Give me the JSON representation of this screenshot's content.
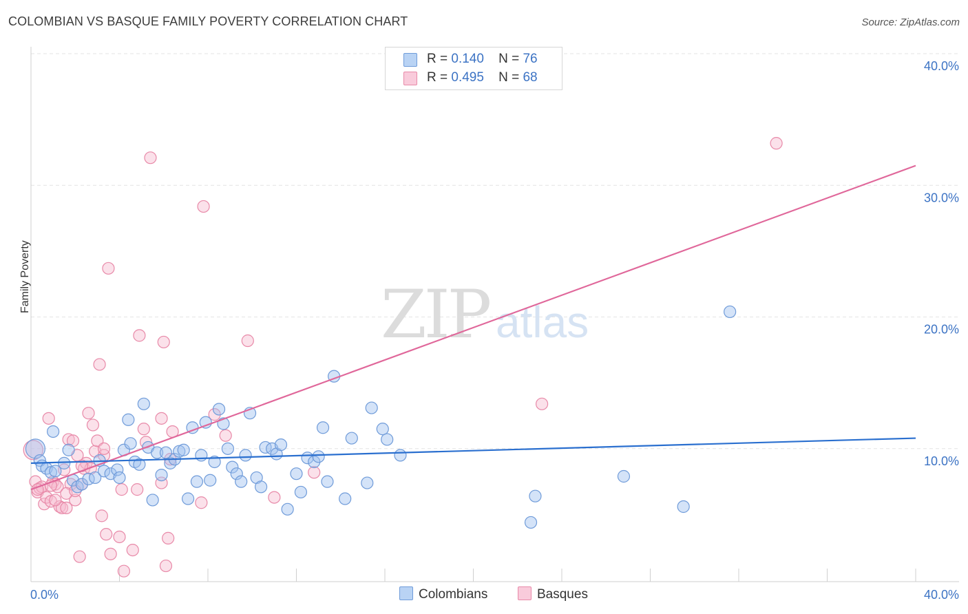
{
  "title": "COLOMBIAN VS BASQUE FAMILY POVERTY CORRELATION CHART",
  "source": "Source: ZipAtlas.com",
  "watermark": {
    "zip": "ZIP",
    "atlas": "atlas"
  },
  "legend": {
    "rows": [
      {
        "r_label": "R =",
        "r_value": "0.140",
        "n_label": "N =",
        "n_value": "76"
      },
      {
        "r_label": "R =",
        "r_value": "0.495",
        "n_label": "N =",
        "n_value": "68"
      }
    ]
  },
  "bottom_legend": {
    "colombians": "Colombians",
    "basques": "Basques"
  },
  "colors": {
    "colombians_fill": "#9fc2f0",
    "colombians_stroke": "#6f9bd9",
    "colombians_line": "#2a6fcf",
    "basques_fill": "#f7bcd0",
    "basques_stroke": "#e889a8",
    "basques_line": "#e0679a",
    "tick_label": "#3c73c4",
    "grid": "#e3e3e3"
  },
  "chart_data": {
    "type": "scatter",
    "title": "COLOMBIAN VS BASQUE FAMILY POVERTY CORRELATION CHART",
    "xlabel": "",
    "ylabel": "Family Poverty",
    "xlim": [
      0,
      40
    ],
    "ylim": [
      0,
      40
    ],
    "x_tick_labels": [
      "0.0%",
      "40.0%"
    ],
    "y_ticks": [
      10,
      20,
      30,
      40
    ],
    "y_tick_labels": [
      "10.0%",
      "20.0%",
      "30.0%",
      "40.0%"
    ],
    "grid": true,
    "legend_placement": "top-center",
    "series": [
      {
        "name": "Colombians",
        "r": 0.14,
        "n": 76,
        "trend": {
          "x": [
            0,
            40
          ],
          "y": [
            9.0,
            10.9
          ]
        },
        "points": [
          [
            0.2,
            10.1
          ],
          [
            0.4,
            9.2
          ],
          [
            0.5,
            8.8
          ],
          [
            0.7,
            8.6
          ],
          [
            0.9,
            8.3
          ],
          [
            1.0,
            11.4
          ],
          [
            1.1,
            8.4
          ],
          [
            1.5,
            9.0
          ],
          [
            1.7,
            10.0
          ],
          [
            1.9,
            7.7
          ],
          [
            2.1,
            7.2
          ],
          [
            2.3,
            7.4
          ],
          [
            2.6,
            7.8
          ],
          [
            2.9,
            7.9
          ],
          [
            3.1,
            9.2
          ],
          [
            3.3,
            8.4
          ],
          [
            3.6,
            8.2
          ],
          [
            3.9,
            8.5
          ],
          [
            4.0,
            7.9
          ],
          [
            4.2,
            10.0
          ],
          [
            4.4,
            12.3
          ],
          [
            4.5,
            10.5
          ],
          [
            4.7,
            9.1
          ],
          [
            4.9,
            8.9
          ],
          [
            5.1,
            13.5
          ],
          [
            5.3,
            10.2
          ],
          [
            5.5,
            6.2
          ],
          [
            5.7,
            9.8
          ],
          [
            5.9,
            8.1
          ],
          [
            6.1,
            9.8
          ],
          [
            6.3,
            9.0
          ],
          [
            6.5,
            9.3
          ],
          [
            6.7,
            9.9
          ],
          [
            6.9,
            10.0
          ],
          [
            7.1,
            6.3
          ],
          [
            7.3,
            11.7
          ],
          [
            7.5,
            7.6
          ],
          [
            7.7,
            9.6
          ],
          [
            7.9,
            12.1
          ],
          [
            8.1,
            7.7
          ],
          [
            8.3,
            9.1
          ],
          [
            8.5,
            13.1
          ],
          [
            8.7,
            12.0
          ],
          [
            8.9,
            10.1
          ],
          [
            9.1,
            8.7
          ],
          [
            9.3,
            8.2
          ],
          [
            9.5,
            7.6
          ],
          [
            9.7,
            9.6
          ],
          [
            9.9,
            12.8
          ],
          [
            10.2,
            7.9
          ],
          [
            10.4,
            7.2
          ],
          [
            10.6,
            10.2
          ],
          [
            10.9,
            10.1
          ],
          [
            11.1,
            9.7
          ],
          [
            11.3,
            10.4
          ],
          [
            11.6,
            5.5
          ],
          [
            12.0,
            8.2
          ],
          [
            12.2,
            6.8
          ],
          [
            12.5,
            9.4
          ],
          [
            12.8,
            9.1
          ],
          [
            13.0,
            9.5
          ],
          [
            13.2,
            11.7
          ],
          [
            13.4,
            7.6
          ],
          [
            13.7,
            15.6
          ],
          [
            14.2,
            6.3
          ],
          [
            14.5,
            10.9
          ],
          [
            15.2,
            7.5
          ],
          [
            15.4,
            13.2
          ],
          [
            15.9,
            11.6
          ],
          [
            16.1,
            10.8
          ],
          [
            16.7,
            9.6
          ],
          [
            22.6,
            4.5
          ],
          [
            22.8,
            6.5
          ],
          [
            26.8,
            8.0
          ],
          [
            29.5,
            5.7
          ],
          [
            31.6,
            20.5
          ]
        ]
      },
      {
        "name": "Basques",
        "r": 0.495,
        "n": 68,
        "trend": {
          "x": [
            0,
            40
          ],
          "y": [
            7.0,
            31.6
          ]
        },
        "points": [
          [
            0.1,
            10.0
          ],
          [
            0.2,
            7.6
          ],
          [
            0.3,
            6.8
          ],
          [
            0.4,
            7.1
          ],
          [
            0.5,
            7.2
          ],
          [
            0.6,
            5.9
          ],
          [
            0.7,
            6.4
          ],
          [
            0.8,
            12.4
          ],
          [
            0.9,
            6.1
          ],
          [
            1.0,
            7.6
          ],
          [
            1.1,
            7.4
          ],
          [
            1.2,
            7.2
          ],
          [
            1.3,
            5.7
          ],
          [
            1.4,
            5.6
          ],
          [
            1.5,
            8.5
          ],
          [
            1.6,
            5.6
          ],
          [
            1.7,
            10.8
          ],
          [
            1.8,
            7.4
          ],
          [
            1.9,
            10.7
          ],
          [
            2.0,
            6.2
          ],
          [
            2.1,
            9.6
          ],
          [
            2.2,
            1.9
          ],
          [
            2.3,
            7.4
          ],
          [
            2.4,
            8.6
          ],
          [
            2.5,
            9.0
          ],
          [
            2.6,
            12.8
          ],
          [
            2.7,
            8.6
          ],
          [
            2.8,
            11.9
          ],
          [
            2.9,
            9.9
          ],
          [
            3.0,
            10.7
          ],
          [
            3.1,
            16.5
          ],
          [
            3.2,
            5.0
          ],
          [
            3.3,
            9.6
          ],
          [
            3.4,
            3.6
          ],
          [
            3.5,
            23.8
          ],
          [
            3.6,
            2.1
          ],
          [
            4.0,
            3.4
          ],
          [
            4.1,
            7.0
          ],
          [
            4.2,
            0.8
          ],
          [
            4.6,
            2.4
          ],
          [
            4.8,
            7.0
          ],
          [
            4.9,
            18.7
          ],
          [
            5.1,
            11.6
          ],
          [
            5.2,
            10.6
          ],
          [
            5.4,
            32.2
          ],
          [
            5.9,
            7.5
          ],
          [
            5.9,
            12.4
          ],
          [
            6.0,
            18.2
          ],
          [
            6.1,
            1.2
          ],
          [
            6.2,
            3.3
          ],
          [
            6.3,
            9.3
          ],
          [
            6.4,
            11.4
          ],
          [
            7.7,
            6.0
          ],
          [
            7.8,
            28.5
          ],
          [
            8.3,
            12.7
          ],
          [
            8.8,
            11.1
          ],
          [
            9.8,
            18.3
          ],
          [
            11.0,
            6.4
          ],
          [
            12.8,
            8.3
          ],
          [
            23.1,
            13.5
          ],
          [
            33.7,
            33.3
          ],
          [
            0.3,
            7.0
          ],
          [
            1.6,
            6.7
          ],
          [
            2.0,
            6.9
          ],
          [
            0.9,
            7.3
          ],
          [
            2.3,
            8.8
          ],
          [
            3.3,
            10.1
          ],
          [
            1.1,
            6.2
          ]
        ]
      }
    ]
  }
}
